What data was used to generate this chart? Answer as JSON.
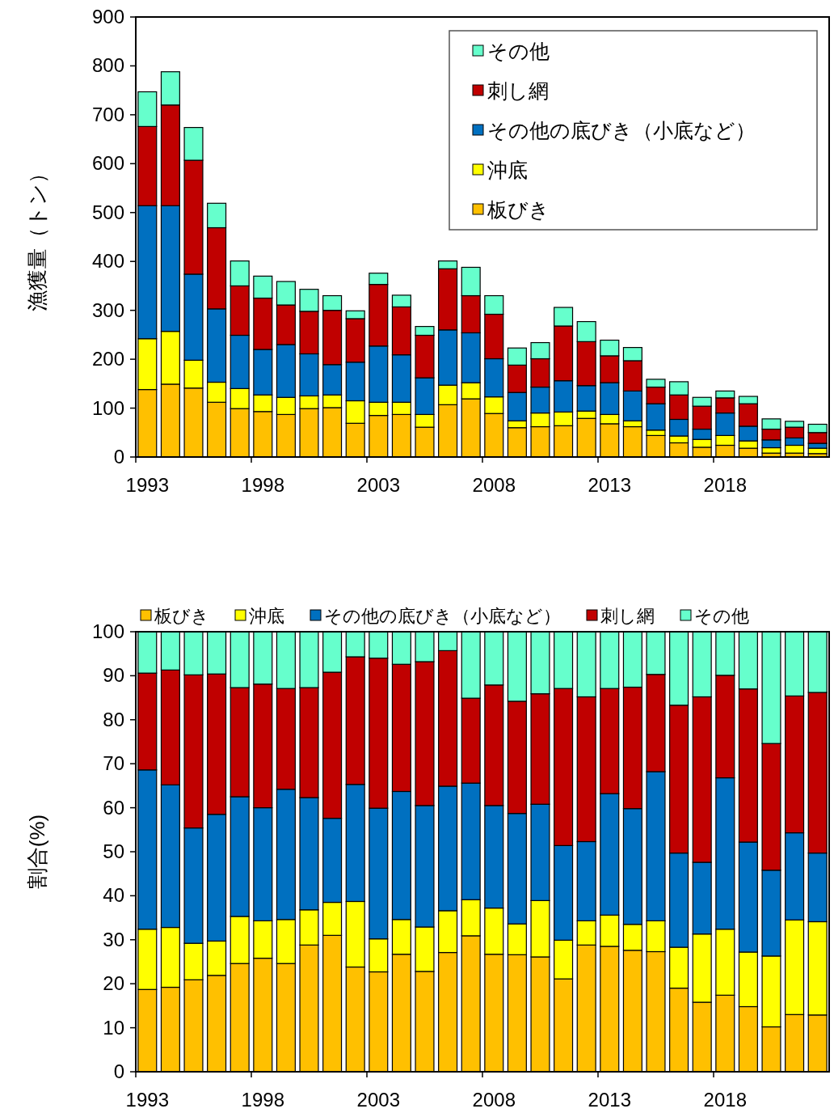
{
  "chart_data": [
    {
      "type": "bar",
      "stacked": true,
      "ylabel": "漁獲量（トン）",
      "ylim": [
        0,
        900
      ],
      "yticks": [
        0,
        100,
        200,
        300,
        400,
        500,
        600,
        700,
        800,
        900
      ],
      "legend": "top right",
      "grid": false,
      "categories": [
        "1993",
        null,
        null,
        null,
        null,
        "1998",
        null,
        null,
        null,
        null,
        "2003",
        null,
        null,
        null,
        null,
        "2008",
        null,
        null,
        null,
        null,
        "2013",
        null,
        null,
        null,
        null,
        "2018",
        null,
        null,
        null,
        null
      ],
      "series": [
        {
          "name": "板びき",
          "color": "#ffc000",
          "values": [
            138,
            149,
            141,
            112,
            99,
            93,
            87,
            99,
            101,
            69,
            85,
            87,
            61,
            107,
            119,
            89,
            60,
            62,
            64,
            79,
            68,
            62,
            44,
            29,
            20,
            24,
            18,
            8,
            8,
            7
          ]
        },
        {
          "name": "沖底",
          "color": "#ffff00",
          "values": [
            104,
            108,
            57,
            41,
            41,
            34,
            35,
            26,
            26,
            46,
            27,
            25,
            26,
            40,
            33,
            34,
            14,
            28,
            28,
            15,
            19,
            12,
            11,
            14,
            16,
            20,
            15,
            11,
            16,
            11
          ]
        },
        {
          "name": "その他の底びき（小底など）",
          "color": "#0070c0",
          "values": [
            272,
            257,
            176,
            150,
            109,
            93,
            108,
            86,
            62,
            79,
            115,
            97,
            75,
            113,
            102,
            78,
            58,
            53,
            64,
            52,
            65,
            61,
            54,
            34,
            21,
            46,
            30,
            16,
            15,
            10
          ]
        },
        {
          "name": "刺し網",
          "color": "#c00000",
          "values": [
            162,
            206,
            233,
            166,
            101,
            105,
            81,
            87,
            111,
            89,
            126,
            98,
            87,
            125,
            76,
            91,
            56,
            58,
            112,
            90,
            55,
            62,
            34,
            50,
            47,
            31,
            46,
            22,
            22,
            22
          ]
        },
        {
          "name": "その他",
          "color": "#66ffcc",
          "values": [
            71,
            68,
            67,
            50,
            51,
            45,
            48,
            45,
            30,
            16,
            23,
            24,
            18,
            16,
            58,
            38,
            35,
            33,
            38,
            41,
            32,
            27,
            16,
            27,
            18,
            14,
            15,
            21,
            12,
            17
          ]
        }
      ]
    },
    {
      "type": "bar",
      "stacked": true,
      "ylabel": "割合(%)",
      "ylim": [
        0,
        100
      ],
      "yticks": [
        0,
        10,
        20,
        30,
        40,
        50,
        60,
        70,
        80,
        90,
        100
      ],
      "legend": "top",
      "grid": false,
      "categories": [
        "1993",
        null,
        null,
        null,
        null,
        "1998",
        null,
        null,
        null,
        null,
        "2003",
        null,
        null,
        null,
        null,
        "2008",
        null,
        null,
        null,
        null,
        "2013",
        null,
        null,
        null,
        null,
        "2018",
        null,
        null,
        null,
        null
      ],
      "series": [
        {
          "name": "板びき",
          "color": "#ffc000",
          "values": [
            18.7,
            19.2,
            20.9,
            21.9,
            24.6,
            25.8,
            24.6,
            28.8,
            31.0,
            23.8,
            22.7,
            26.7,
            22.8,
            27.1,
            30.9,
            26.7,
            26.6,
            26.1,
            21.1,
            28.8,
            28.5,
            27.6,
            27.3,
            19.0,
            15.8,
            17.4,
            14.8,
            10.2,
            13.0,
            12.9
          ]
        },
        {
          "name": "沖底",
          "color": "#ffff00",
          "values": [
            13.7,
            13.6,
            8.3,
            7.8,
            10.7,
            8.5,
            10.0,
            8.0,
            7.5,
            14.9,
            7.5,
            7.9,
            10.1,
            9.5,
            8.2,
            10.5,
            7.0,
            12.8,
            8.8,
            5.5,
            7.1,
            5.9,
            7.0,
            9.3,
            15.5,
            15.0,
            12.4,
            16.1,
            21.5,
            21.2
          ]
        },
        {
          "name": "その他の底びき（小底など）",
          "color": "#0070c0",
          "values": [
            36.2,
            32.4,
            26.2,
            28.8,
            27.2,
            25.7,
            29.6,
            25.5,
            19.1,
            26.6,
            29.7,
            29.1,
            27.6,
            28.3,
            26.5,
            23.3,
            25.1,
            21.9,
            21.5,
            18.0,
            27.6,
            26.3,
            33.9,
            21.4,
            16.3,
            34.4,
            25.0,
            19.5,
            19.8,
            15.6
          ]
        },
        {
          "name": "刺し網",
          "color": "#c00000",
          "values": [
            22.0,
            26.1,
            34.8,
            31.9,
            24.8,
            28.1,
            22.9,
            25.0,
            33.2,
            29.0,
            34.1,
            28.9,
            32.7,
            30.8,
            19.3,
            27.4,
            25.5,
            25.1,
            35.7,
            32.9,
            23.9,
            27.6,
            22.1,
            33.6,
            37.6,
            23.3,
            34.8,
            28.8,
            31.1,
            36.5
          ]
        },
        {
          "name": "その他",
          "color": "#66ffcc",
          "values": [
            9.4,
            8.7,
            9.8,
            9.6,
            12.7,
            11.9,
            12.9,
            12.7,
            9.2,
            5.7,
            6.0,
            7.4,
            6.8,
            4.3,
            15.1,
            12.1,
            15.8,
            14.1,
            12.9,
            14.8,
            12.9,
            12.6,
            9.7,
            16.7,
            14.8,
            9.9,
            13.0,
            25.4,
            14.6,
            13.8
          ]
        }
      ]
    }
  ]
}
